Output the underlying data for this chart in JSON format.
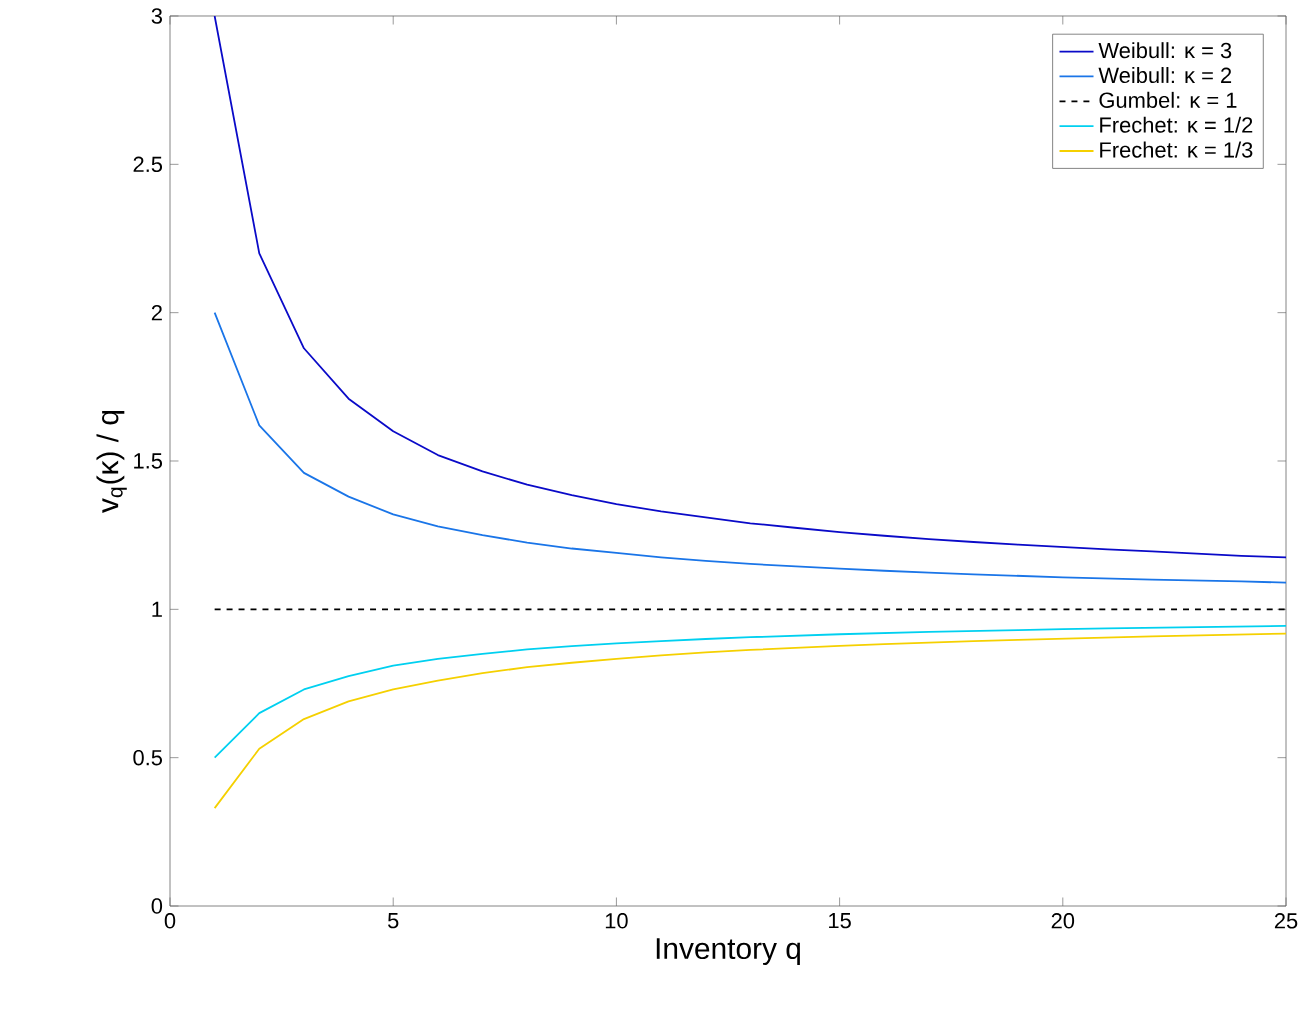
{
  "chart_data": {
    "type": "line",
    "xlabel": "Inventory q",
    "ylabel": "v$_{q}$(κ) / q",
    "x": [
      1,
      2,
      3,
      4,
      5,
      6,
      7,
      8,
      9,
      10,
      11,
      12,
      13,
      14,
      15,
      16,
      17,
      18,
      19,
      20,
      21,
      22,
      23,
      24,
      25
    ],
    "series": [
      {
        "name": "Weibull: κ = 3",
        "color": "#0a0ac8",
        "values": [
          3,
          2.2,
          1.88,
          1.71,
          1.6,
          1.52,
          1.465,
          1.42,
          1.385,
          1.355,
          1.33,
          1.31,
          1.29,
          1.275,
          1.26,
          1.248,
          1.237,
          1.227,
          1.218,
          1.21,
          1.202,
          1.195,
          1.188,
          1.18,
          1.175
        ]
      },
      {
        "name": "Weibull: κ = 2",
        "color": "#1a75e8",
        "values": [
          2,
          1.62,
          1.46,
          1.38,
          1.32,
          1.28,
          1.25,
          1.225,
          1.205,
          1.19,
          1.175,
          1.163,
          1.153,
          1.145,
          1.137,
          1.13,
          1.124,
          1.118,
          1.113,
          1.108,
          1.104,
          1.1,
          1.097,
          1.094,
          1.09
        ]
      },
      {
        "name": "Gumbel: κ = 1",
        "color": "#000000",
        "line_style": "dashed",
        "values": [
          1,
          1,
          1,
          1,
          1,
          1,
          1,
          1,
          1,
          1,
          1,
          1,
          1,
          1,
          1,
          1,
          1,
          1,
          1,
          1,
          1,
          1,
          1,
          1,
          1
        ]
      },
      {
        "name": "Frechet: κ = 1/2",
        "color": "#00d0f0",
        "values": [
          0.5,
          0.65,
          0.73,
          0.775,
          0.81,
          0.833,
          0.85,
          0.865,
          0.876,
          0.885,
          0.893,
          0.9,
          0.906,
          0.911,
          0.916,
          0.92,
          0.924,
          0.927,
          0.93,
          0.933,
          0.936,
          0.938,
          0.94,
          0.942,
          0.944
        ]
      },
      {
        "name": "Frechet: κ = 1/3",
        "color": "#f5d000",
        "values": [
          0.33,
          0.53,
          0.63,
          0.69,
          0.73,
          0.76,
          0.785,
          0.805,
          0.82,
          0.833,
          0.845,
          0.855,
          0.863,
          0.87,
          0.877,
          0.883,
          0.888,
          0.893,
          0.897,
          0.901,
          0.905,
          0.909,
          0.912,
          0.915,
          0.918
        ]
      }
    ],
    "xlim": [
      0,
      25
    ],
    "xticks": [
      0,
      5,
      10,
      15,
      20,
      25
    ],
    "ylim": [
      0,
      3
    ],
    "yticks": [
      0,
      0.5,
      1,
      1.5,
      2,
      2.5,
      3
    ],
    "legend": "top right",
    "grid": false,
    "marker": "none",
    "line_style": "solid"
  }
}
